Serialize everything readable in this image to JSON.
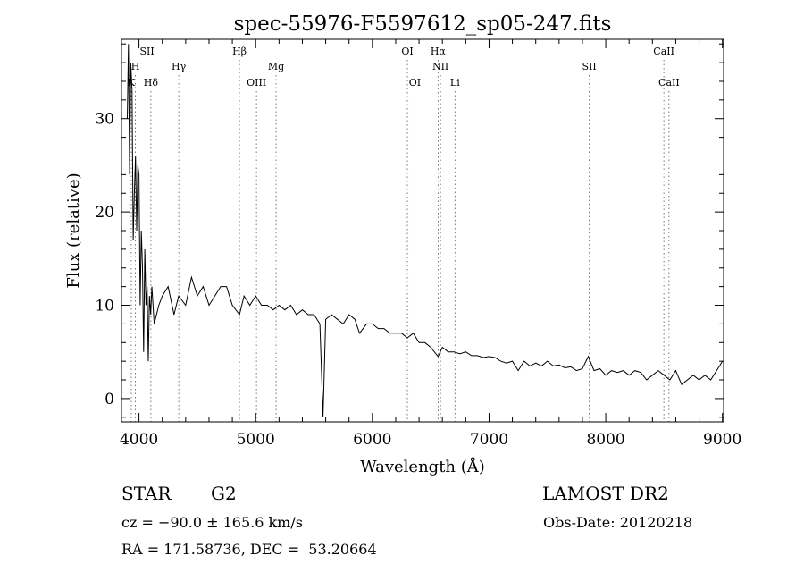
{
  "chart_data": {
    "type": "line",
    "title": "spec-55976-F5597612_sp05-247.fits",
    "xlabel": "Wavelength (Å)",
    "ylabel": "Flux (relative)",
    "xlim": [
      3850,
      9010
    ],
    "ylim": [
      -2.5,
      38.5
    ],
    "xticks": [
      4000,
      5000,
      6000,
      7000,
      8000,
      9000
    ],
    "yticks": [
      0,
      10,
      20,
      30
    ],
    "grid": false,
    "series": [
      {
        "color": "#000000",
        "x": [
          3900,
          3910,
          3920,
          3930,
          3940,
          3950,
          3960,
          3970,
          3980,
          3990,
          4000,
          4010,
          4020,
          4030,
          4040,
          4050,
          4060,
          4070,
          4080,
          4090,
          4100,
          4110,
          4120,
          4130,
          4150,
          4170,
          4200,
          4250,
          4300,
          4340,
          4400,
          4450,
          4500,
          4550,
          4600,
          4650,
          4700,
          4750,
          4800,
          4861,
          4900,
          4950,
          5000,
          5050,
          5100,
          5150,
          5200,
          5250,
          5300,
          5350,
          5400,
          5450,
          5500,
          5550,
          5577,
          5600,
          5650,
          5700,
          5750,
          5800,
          5850,
          5890,
          5950,
          6000,
          6050,
          6100,
          6150,
          6200,
          6250,
          6300,
          6350,
          6400,
          6450,
          6500,
          6563,
          6600,
          6650,
          6700,
          6750,
          6800,
          6850,
          6900,
          6950,
          7000,
          7050,
          7100,
          7150,
          7200,
          7250,
          7300,
          7350,
          7400,
          7450,
          7500,
          7550,
          7600,
          7650,
          7700,
          7750,
          7800,
          7850,
          7900,
          7950,
          8000,
          8050,
          8100,
          8150,
          8200,
          8250,
          8300,
          8350,
          8400,
          8450,
          8500,
          8550,
          8600,
          8650,
          8700,
          8750,
          8800,
          8850,
          8900,
          8950,
          9000
        ],
        "y": [
          30,
          38,
          24,
          36,
          33,
          17,
          22,
          26,
          18,
          25,
          24,
          10,
          18,
          14,
          5,
          16,
          10,
          12,
          4,
          11,
          9,
          12,
          10,
          8,
          9,
          10,
          11,
          12,
          9,
          11,
          10,
          13,
          11,
          12,
          10,
          11,
          12,
          12,
          10,
          9,
          11,
          10,
          11,
          10,
          10,
          9.5,
          10,
          9.5,
          10,
          9,
          9.5,
          9,
          9,
          8,
          -2,
          8.5,
          9,
          8.5,
          8,
          9,
          8.5,
          7,
          8,
          8,
          7.5,
          7.5,
          7,
          7,
          7,
          6.5,
          7,
          6,
          6,
          5.5,
          4.5,
          5.5,
          5,
          5,
          4.8,
          5,
          4.6,
          4.6,
          4.4,
          4.5,
          4.4,
          4,
          3.8,
          4,
          3,
          4,
          3.5,
          3.8,
          3.5,
          4,
          3.5,
          3.6,
          3.3,
          3.4,
          3,
          3.2,
          4.5,
          3,
          3.2,
          2.5,
          3,
          2.8,
          3,
          2.5,
          3,
          2.8,
          2,
          2.5,
          3,
          2.5,
          2,
          3,
          1.5,
          2,
          2.5,
          2,
          2.5,
          2,
          3,
          4
        ]
      }
    ],
    "line_markers": [
      {
        "label": "K",
        "x": 3934,
        "row": 3
      },
      {
        "label": "H",
        "x": 3969,
        "row": 2
      },
      {
        "label": "SII",
        "x": 4069,
        "row": 1
      },
      {
        "label": "Hδ",
        "x": 4102,
        "row": 3
      },
      {
        "label": "Hγ",
        "x": 4341,
        "row": 2
      },
      {
        "label": "Hβ",
        "x": 4861,
        "row": 1
      },
      {
        "label": "OIII",
        "x": 5007,
        "row": 3
      },
      {
        "label": "Mg",
        "x": 5175,
        "row": 2
      },
      {
        "label": "OI",
        "x": 6300,
        "row": 1
      },
      {
        "label": "OI",
        "x": 6364,
        "row": 3
      },
      {
        "label": "Hα",
        "x": 6563,
        "row": 1
      },
      {
        "label": "NII",
        "x": 6584,
        "row": 2
      },
      {
        "label": "Li",
        "x": 6708,
        "row": 3
      },
      {
        "label": "SII",
        "x": 7859,
        "row": 2
      },
      {
        "label": "CaII",
        "x": 8498,
        "row": 1
      },
      {
        "label": "CaII",
        "x": 8542,
        "row": 3
      }
    ]
  },
  "info": {
    "object_class": "STAR",
    "subclass": "G2",
    "survey": "LAMOST DR2",
    "obs_date": "Obs-Date: 20120218",
    "redshift": "cz = −90.0 ± 165.6 km/s",
    "coords": "RA = 171.58736, DEC =  53.20664"
  }
}
